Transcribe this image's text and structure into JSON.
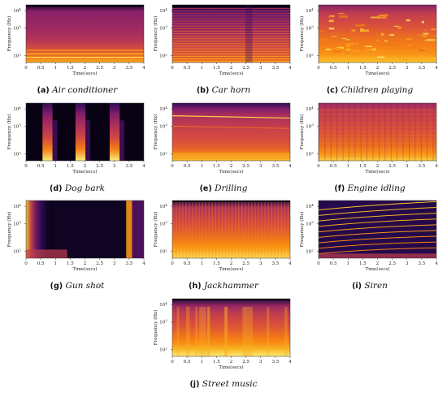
{
  "figure": {
    "axes": {
      "xlabel": "Time(secs)",
      "ylabel": "Frequency (Hz)",
      "x_ticks": [
        "0",
        "0.5",
        "1",
        "1.5",
        "2",
        "2.5",
        "3",
        "3.5",
        "4"
      ],
      "y_ticks": [
        {
          "base": "10",
          "exp": "4"
        },
        {
          "base": "10",
          "exp": "3"
        },
        {
          "base": "10",
          "exp": "2"
        }
      ]
    },
    "colormap": [
      "#000004",
      "#2c0b57",
      "#6a176e",
      "#a52c60",
      "#d94d3d",
      "#f8850f",
      "#fac62d",
      "#fcffa4"
    ],
    "panels": [
      {
        "letter": "(a)",
        "name": "Air conditioner"
      },
      {
        "letter": "(b)",
        "name": "Car horn"
      },
      {
        "letter": "(c)",
        "name": "Children playing"
      },
      {
        "letter": "(d)",
        "name": "Dog bark"
      },
      {
        "letter": "(e)",
        "name": "Drilling"
      },
      {
        "letter": "(f)",
        "name": "Engine idling"
      },
      {
        "letter": "(g)",
        "name": "Gun shot"
      },
      {
        "letter": "(h)",
        "name": "Jackhammer"
      },
      {
        "letter": "(i)",
        "name": "Siren"
      },
      {
        "letter": "(j)",
        "name": "Street music"
      }
    ]
  }
}
